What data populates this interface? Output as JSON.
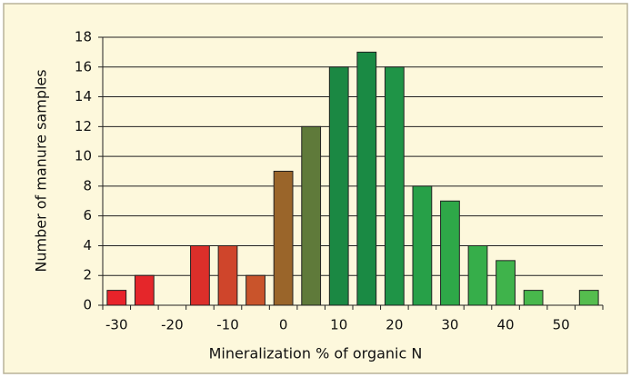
{
  "chart_data": {
    "type": "bar",
    "x_label": "Mineralization % of organic N",
    "y_label": "Number of manure samples",
    "categories": [
      "-30",
      null,
      "-20",
      null,
      "-10",
      null,
      "0",
      null,
      "10",
      null,
      "20",
      null,
      "30",
      null,
      "40",
      null,
      "50",
      null
    ],
    "values": [
      1,
      2,
      0,
      4,
      4,
      2,
      9,
      12,
      16,
      17,
      16,
      8,
      7,
      4,
      3,
      1,
      0,
      1
    ],
    "colors": [
      "#e8232a",
      "#e5262a",
      "#e0292a",
      "#dc2f2a",
      "#cf452b",
      "#c9542b",
      "#9a652a",
      "#5f7a3a",
      "#1b8843",
      "#1a8a44",
      "#1f9447",
      "#27a048",
      "#2ea848",
      "#36ae4a",
      "#3fb34b",
      "#48b84c",
      "#50bb4d",
      "#55bd4e"
    ],
    "ylim": [
      0,
      18
    ],
    "yticks": [
      0,
      2,
      4,
      6,
      8,
      10,
      12,
      14,
      16,
      18
    ],
    "grid": true
  }
}
